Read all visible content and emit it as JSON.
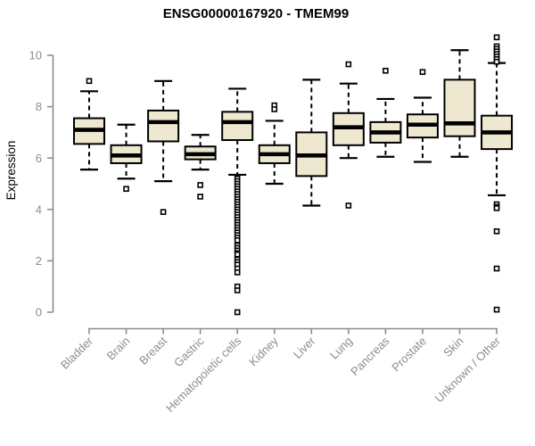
{
  "title": "ENSG00000167920 - TMEM99",
  "chart_data": {
    "type": "boxplot",
    "title": "ENSG00000167920 - TMEM99",
    "xlabel": "",
    "ylabel": "Expression",
    "ylim": [
      0,
      10
    ],
    "yticks": [
      0,
      2,
      4,
      6,
      8,
      10
    ],
    "grid": false,
    "legend": false,
    "categories": [
      "Bladder",
      "Brain",
      "Breast",
      "Gastric",
      "Hematopoietic cells",
      "Kidney",
      "Liver",
      "Lung",
      "Pancreas",
      "Prostate",
      "Skin",
      "Unknown / Other"
    ],
    "series": [
      {
        "name": "Bladder",
        "whisker_low": 5.55,
        "q1": 6.55,
        "median": 7.1,
        "q3": 7.55,
        "whisker_high": 8.6,
        "outliers": [
          9.0
        ]
      },
      {
        "name": "Brain",
        "whisker_low": 5.2,
        "q1": 5.8,
        "median": 6.1,
        "q3": 6.5,
        "whisker_high": 7.3,
        "outliers": [
          4.8
        ]
      },
      {
        "name": "Breast",
        "whisker_low": 5.1,
        "q1": 6.65,
        "median": 7.4,
        "q3": 7.85,
        "whisker_high": 9.0,
        "outliers": [
          3.9
        ]
      },
      {
        "name": "Gastric",
        "whisker_low": 5.55,
        "q1": 5.95,
        "median": 6.15,
        "q3": 6.45,
        "whisker_high": 6.9,
        "outliers": [
          4.95,
          4.5
        ]
      },
      {
        "name": "Hematopoietic cells",
        "whisker_low": 5.35,
        "q1": 6.7,
        "median": 7.4,
        "q3": 7.8,
        "whisker_high": 8.7,
        "outliers": [
          5.2,
          5.1,
          5.0,
          4.9,
          4.8,
          4.7,
          4.6,
          4.5,
          4.4,
          4.3,
          4.2,
          4.1,
          4.0,
          3.9,
          3.8,
          3.7,
          3.6,
          3.5,
          3.4,
          3.3,
          3.2,
          3.1,
          3.0,
          2.9,
          2.8,
          2.6,
          2.5,
          2.4,
          2.3,
          2.25,
          2.05,
          1.95,
          1.85,
          1.7,
          1.55,
          1.0,
          0.85,
          0.0
        ]
      },
      {
        "name": "Kidney",
        "whisker_low": 5.0,
        "q1": 5.8,
        "median": 6.15,
        "q3": 6.5,
        "whisker_high": 7.45,
        "outliers": [
          8.05,
          7.9
        ]
      },
      {
        "name": "Liver",
        "whisker_low": 4.15,
        "q1": 5.3,
        "median": 6.1,
        "q3": 7.0,
        "whisker_high": 9.05,
        "outliers": []
      },
      {
        "name": "Lung",
        "whisker_low": 6.0,
        "q1": 6.5,
        "median": 7.2,
        "q3": 7.75,
        "whisker_high": 8.9,
        "outliers": [
          9.65,
          4.15
        ]
      },
      {
        "name": "Pancreas",
        "whisker_low": 6.05,
        "q1": 6.6,
        "median": 7.0,
        "q3": 7.4,
        "whisker_high": 8.3,
        "outliers": [
          9.4
        ]
      },
      {
        "name": "Prostate",
        "whisker_low": 5.85,
        "q1": 6.8,
        "median": 7.3,
        "q3": 7.7,
        "whisker_high": 8.35,
        "outliers": [
          9.35
        ]
      },
      {
        "name": "Skin",
        "whisker_low": 6.05,
        "q1": 6.85,
        "median": 7.35,
        "q3": 9.05,
        "whisker_high": 10.2,
        "outliers": []
      },
      {
        "name": "Unknown / Other",
        "whisker_low": 4.55,
        "q1": 6.35,
        "median": 7.0,
        "q3": 7.65,
        "whisker_high": 9.7,
        "outliers": [
          10.7,
          10.35,
          10.25,
          10.15,
          10.05,
          9.95,
          9.85,
          9.75,
          4.2,
          4.1,
          4.05,
          3.15,
          1.7,
          0.1
        ]
      }
    ]
  },
  "style": {
    "box_fill": "#ede8cf",
    "box_border": "#000000",
    "median_color": "#000000",
    "whisker_color": "#000000",
    "outlier_fill": "#ffffff",
    "axis_color": "#8d8d8d",
    "tick_label_color": "#8d8d8d",
    "title_color": "#000000",
    "background": "#ffffff"
  }
}
